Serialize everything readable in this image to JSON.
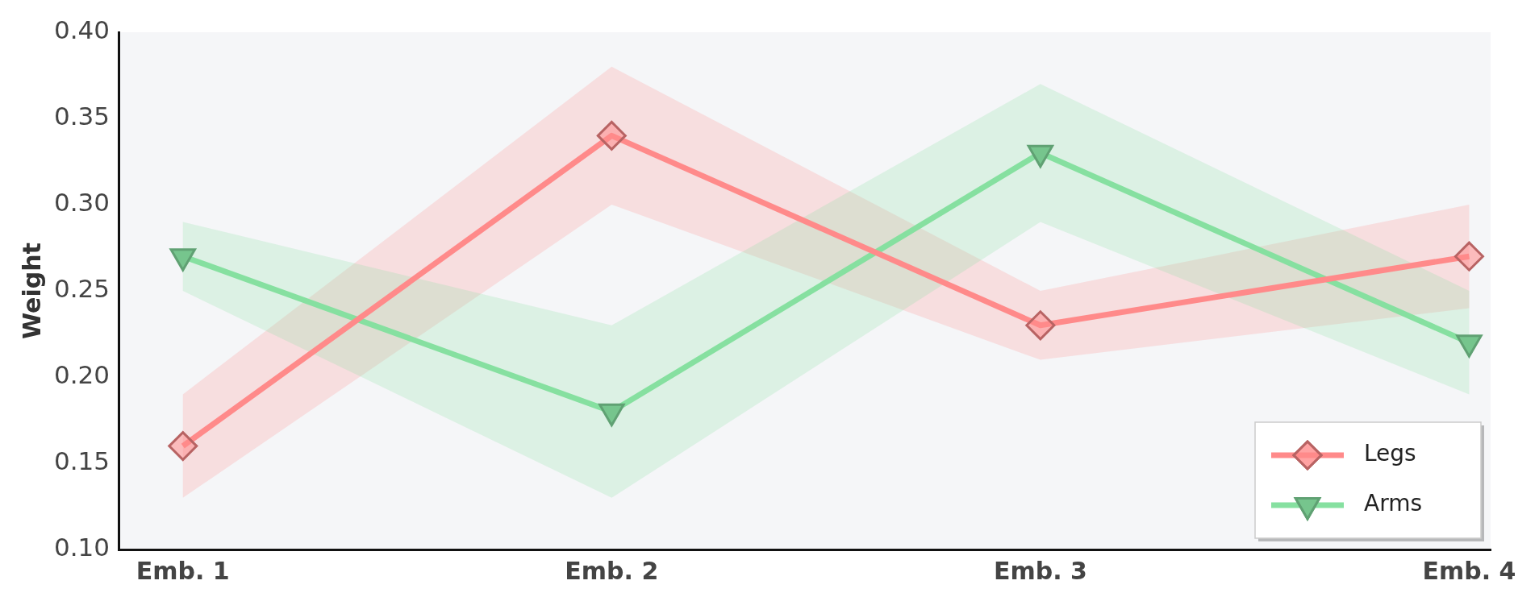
{
  "chart_data": {
    "type": "line",
    "ylabel": "Weight",
    "categories": [
      "Emb. 1",
      "Emb. 2",
      "Emb. 3",
      "Emb. 4"
    ],
    "series": [
      {
        "name": "Legs",
        "color": "#ff8a8a",
        "marker": "diamond",
        "values": [
          0.16,
          0.34,
          0.23,
          0.27
        ],
        "lower": [
          0.13,
          0.3,
          0.21,
          0.24
        ],
        "upper": [
          0.19,
          0.38,
          0.25,
          0.3
        ]
      },
      {
        "name": "Arms",
        "color": "#86e0a0",
        "marker": "triangle",
        "values": [
          0.27,
          0.18,
          0.33,
          0.22
        ],
        "lower": [
          0.25,
          0.13,
          0.29,
          0.19
        ],
        "upper": [
          0.29,
          0.23,
          0.37,
          0.25
        ]
      }
    ],
    "ylim": [
      0.1,
      0.4
    ],
    "yticks": [
      {
        "value": 0.1,
        "label": "0.10"
      },
      {
        "value": 0.15,
        "label": "0.15"
      },
      {
        "value": 0.2,
        "label": "0.20"
      },
      {
        "value": 0.25,
        "label": "0.25"
      },
      {
        "value": 0.3,
        "label": "0.30"
      },
      {
        "value": 0.35,
        "label": "0.35"
      },
      {
        "value": 0.4,
        "label": "0.40"
      }
    ],
    "grid": false,
    "legend": "bottom right",
    "line_style": "solid"
  }
}
